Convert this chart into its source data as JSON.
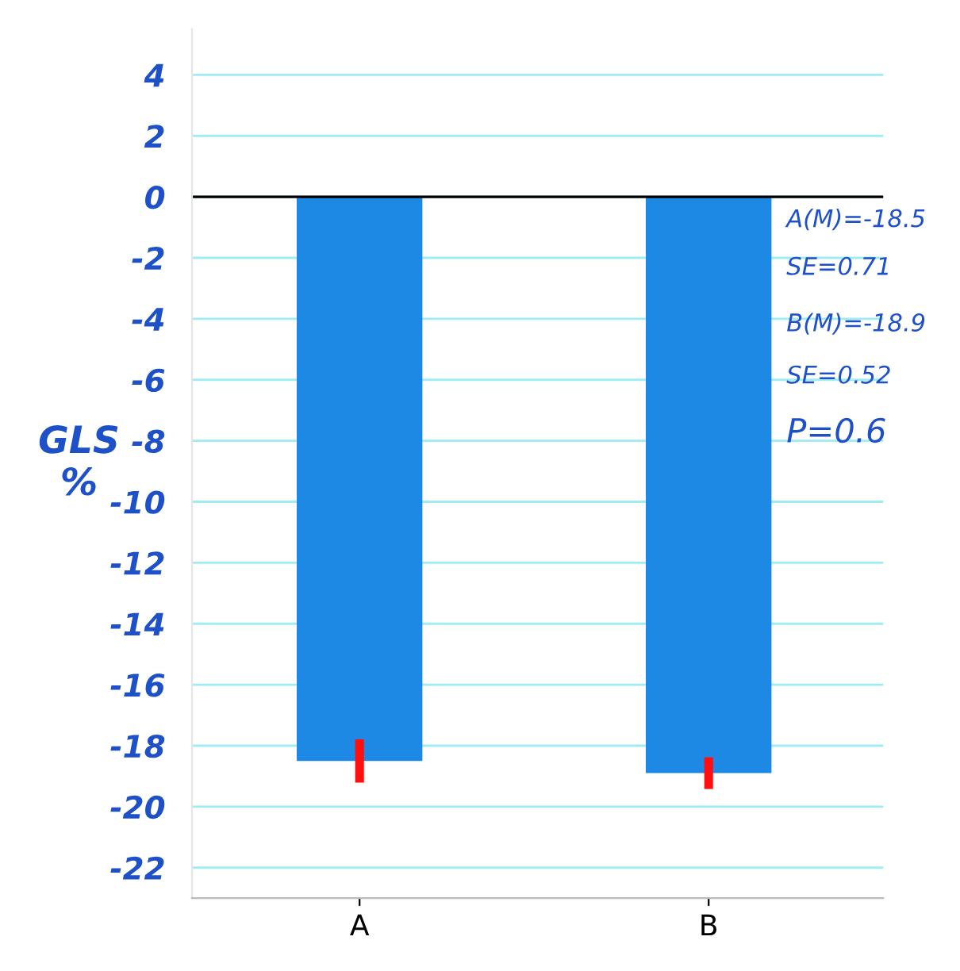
{
  "chart_data": {
    "type": "bar",
    "categories": [
      "A",
      "B"
    ],
    "series": [
      {
        "color": "#1e88e5",
        "values": [
          -18.5,
          -18.9
        ],
        "errors": [
          0.71,
          0.52
        ]
      }
    ],
    "ylabel": "GLS\n%",
    "ylim": [
      -23,
      5.5
    ],
    "yticks": [
      4,
      2,
      0,
      -2,
      -4,
      -6,
      -8,
      -10,
      -12,
      -14,
      -16,
      -18,
      -20,
      -22
    ],
    "grid": "y",
    "legend": false,
    "ref_lines": [
      {
        "axis": "y",
        "value": 0,
        "color": "#000000"
      }
    ],
    "annotations": [
      "A(M)=-18.5",
      "SE=0.71",
      "B(M)=-18.9",
      "SE=0.52",
      "P=0.6"
    ]
  }
}
